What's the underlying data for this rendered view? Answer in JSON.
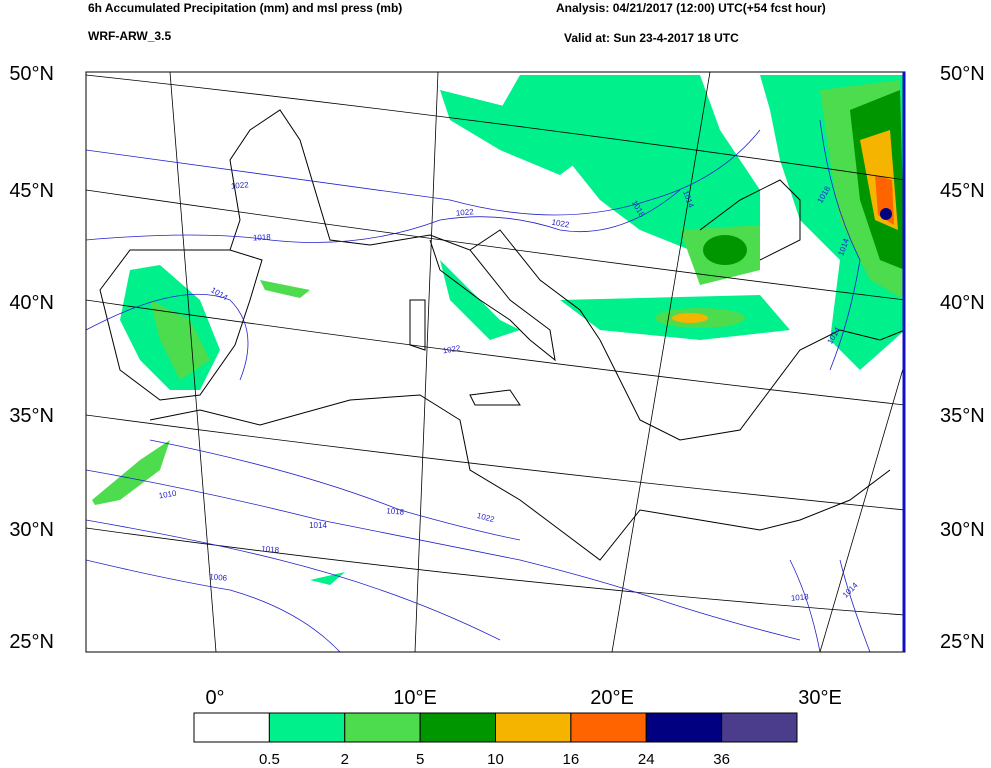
{
  "header": {
    "title": "6h Accumulated Precipitation (mm) and msl press (mb)",
    "model": "WRF-ARW_3.5",
    "analysis": "Analysis: 04/21/2017 (12:00) UTC(+54 fcst hour)",
    "valid": "Valid at: Sun 23-4-2017  18 UTC"
  },
  "lat_labels": [
    "50°N",
    "45°N",
    "40°N",
    "35°N",
    "30°N",
    "25°N"
  ],
  "lon_labels": [
    "0°",
    "10°E",
    "20°E",
    "30°E"
  ],
  "contour_labels": [
    "1022",
    "1018",
    "1014",
    "1022",
    "1022",
    "1018",
    "1014",
    "1018",
    "1014",
    "1014",
    "1022",
    "1010",
    "1014",
    "1018",
    "1022",
    "1018",
    "1006",
    "1018",
    "1014"
  ],
  "colorbar": {
    "colors": [
      "#ffffff",
      "#00f08c",
      "#4ddc4d",
      "#009600",
      "#f5b400",
      "#ff6400",
      "#000080",
      "#4b3c8c"
    ],
    "labels": [
      "0.5",
      "2",
      "5",
      "10",
      "16",
      "24",
      "36"
    ]
  }
}
